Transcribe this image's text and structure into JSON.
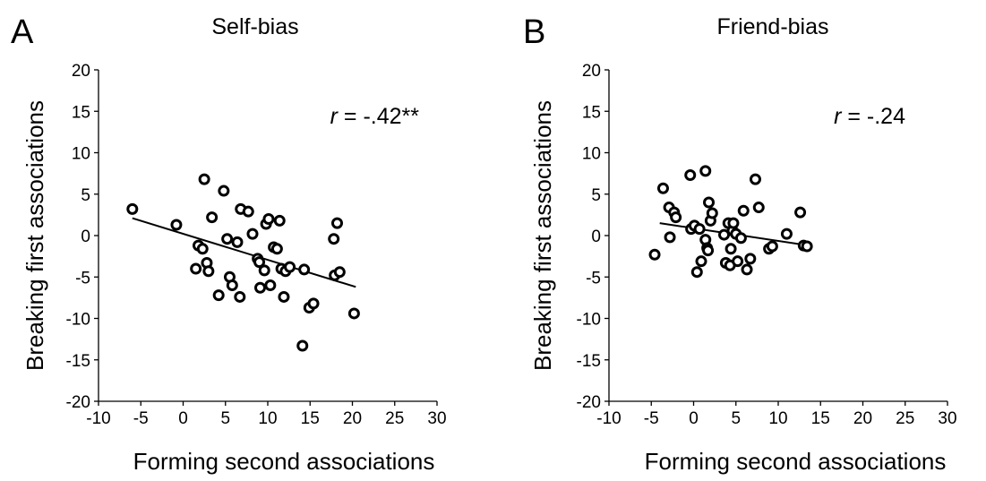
{
  "chart_data": [
    {
      "type": "scatter",
      "panel": "A",
      "title": "Self-bias",
      "xlabel": "Forming second associations",
      "ylabel": "Breaking first associations",
      "xlim": [
        -10,
        30
      ],
      "ylim": [
        -20,
        20
      ],
      "xticks": [
        "-10",
        "-5",
        "0",
        "5",
        "10",
        "15",
        "20",
        "25",
        "30"
      ],
      "yticks": [
        "20",
        "15",
        "10",
        "5",
        "0",
        "-5",
        "-10",
        "-15",
        "-20"
      ],
      "annotation": {
        "r_symbol": "r",
        "text": " = -.42**"
      },
      "fit_line": {
        "x": [
          -6,
          20.4
        ],
        "y": [
          2.1,
          -6.2
        ]
      },
      "grid": false,
      "legend": "none",
      "points": [
        [
          -6.0,
          3.2
        ],
        [
          -0.8,
          1.3
        ],
        [
          1.5,
          -4.0
        ],
        [
          1.8,
          -1.2
        ],
        [
          2.3,
          -1.6
        ],
        [
          2.5,
          6.8
        ],
        [
          2.8,
          -3.3
        ],
        [
          3.0,
          -4.3
        ],
        [
          3.4,
          2.2
        ],
        [
          4.2,
          -7.2
        ],
        [
          4.8,
          5.4
        ],
        [
          5.2,
          -0.4
        ],
        [
          5.5,
          -5.0
        ],
        [
          5.8,
          -6.0
        ],
        [
          6.4,
          -0.8
        ],
        [
          6.7,
          -7.4
        ],
        [
          6.8,
          3.2
        ],
        [
          7.7,
          2.9
        ],
        [
          8.2,
          0.2
        ],
        [
          8.8,
          -2.8
        ],
        [
          9.0,
          -3.2
        ],
        [
          9.1,
          -6.3
        ],
        [
          9.6,
          -4.2
        ],
        [
          9.8,
          1.4
        ],
        [
          10.1,
          2.0
        ],
        [
          10.3,
          -6.0
        ],
        [
          10.7,
          -1.4
        ],
        [
          11.1,
          -1.6
        ],
        [
          11.4,
          1.8
        ],
        [
          11.6,
          -4.0
        ],
        [
          11.9,
          -7.4
        ],
        [
          12.1,
          -4.3
        ],
        [
          12.6,
          -3.8
        ],
        [
          14.1,
          -13.3
        ],
        [
          14.3,
          -4.1
        ],
        [
          14.9,
          -8.7
        ],
        [
          15.4,
          -8.2
        ],
        [
          17.8,
          -0.4
        ],
        [
          17.9,
          -4.8
        ],
        [
          18.2,
          1.5
        ],
        [
          18.5,
          -4.4
        ],
        [
          20.2,
          -9.4
        ]
      ]
    },
    {
      "type": "scatter",
      "panel": "B",
      "title": "Friend-bias",
      "xlabel": "Forming second associations",
      "ylabel": "Breaking first associations",
      "xlim": [
        -10,
        30
      ],
      "ylim": [
        -20,
        20
      ],
      "xticks": [
        "-10",
        "-5",
        "0",
        "5",
        "10",
        "15",
        "20",
        "25",
        "30"
      ],
      "yticks": [
        "20",
        "15",
        "10",
        "5",
        "0",
        "-5",
        "-10",
        "-15",
        "-20"
      ],
      "annotation": {
        "r_symbol": "r",
        "text": " = -.24"
      },
      "fit_line": {
        "x": [
          -4,
          13.6
        ],
        "y": [
          1.5,
          -1.2
        ]
      },
      "grid": false,
      "legend": "none",
      "points": [
        [
          -4.6,
          -2.3
        ],
        [
          -3.6,
          5.7
        ],
        [
          -2.9,
          3.4
        ],
        [
          -2.8,
          -0.2
        ],
        [
          -2.3,
          2.8
        ],
        [
          -2.1,
          2.2
        ],
        [
          -0.4,
          7.3
        ],
        [
          -0.3,
          0.8
        ],
        [
          0.1,
          1.2
        ],
        [
          0.7,
          0.8
        ],
        [
          0.4,
          -4.4
        ],
        [
          0.9,
          -3.1
        ],
        [
          1.4,
          7.8
        ],
        [
          1.4,
          -0.5
        ],
        [
          1.6,
          -1.5
        ],
        [
          1.7,
          -1.8
        ],
        [
          1.8,
          4.0
        ],
        [
          2.0,
          1.8
        ],
        [
          2.2,
          2.7
        ],
        [
          3.6,
          0.1
        ],
        [
          3.8,
          -3.3
        ],
        [
          4.1,
          1.5
        ],
        [
          4.3,
          -3.6
        ],
        [
          4.4,
          -1.6
        ],
        [
          4.6,
          0.6
        ],
        [
          4.7,
          1.5
        ],
        [
          5.0,
          0.2
        ],
        [
          5.2,
          -3.1
        ],
        [
          5.6,
          -0.3
        ],
        [
          5.9,
          3.0
        ],
        [
          6.3,
          -4.1
        ],
        [
          6.7,
          -2.8
        ],
        [
          7.3,
          6.8
        ],
        [
          7.7,
          3.4
        ],
        [
          8.9,
          -1.6
        ],
        [
          9.3,
          -1.3
        ],
        [
          11.0,
          0.2
        ],
        [
          12.6,
          2.8
        ],
        [
          13.0,
          -1.2
        ],
        [
          13.4,
          -1.3
        ]
      ]
    }
  ]
}
